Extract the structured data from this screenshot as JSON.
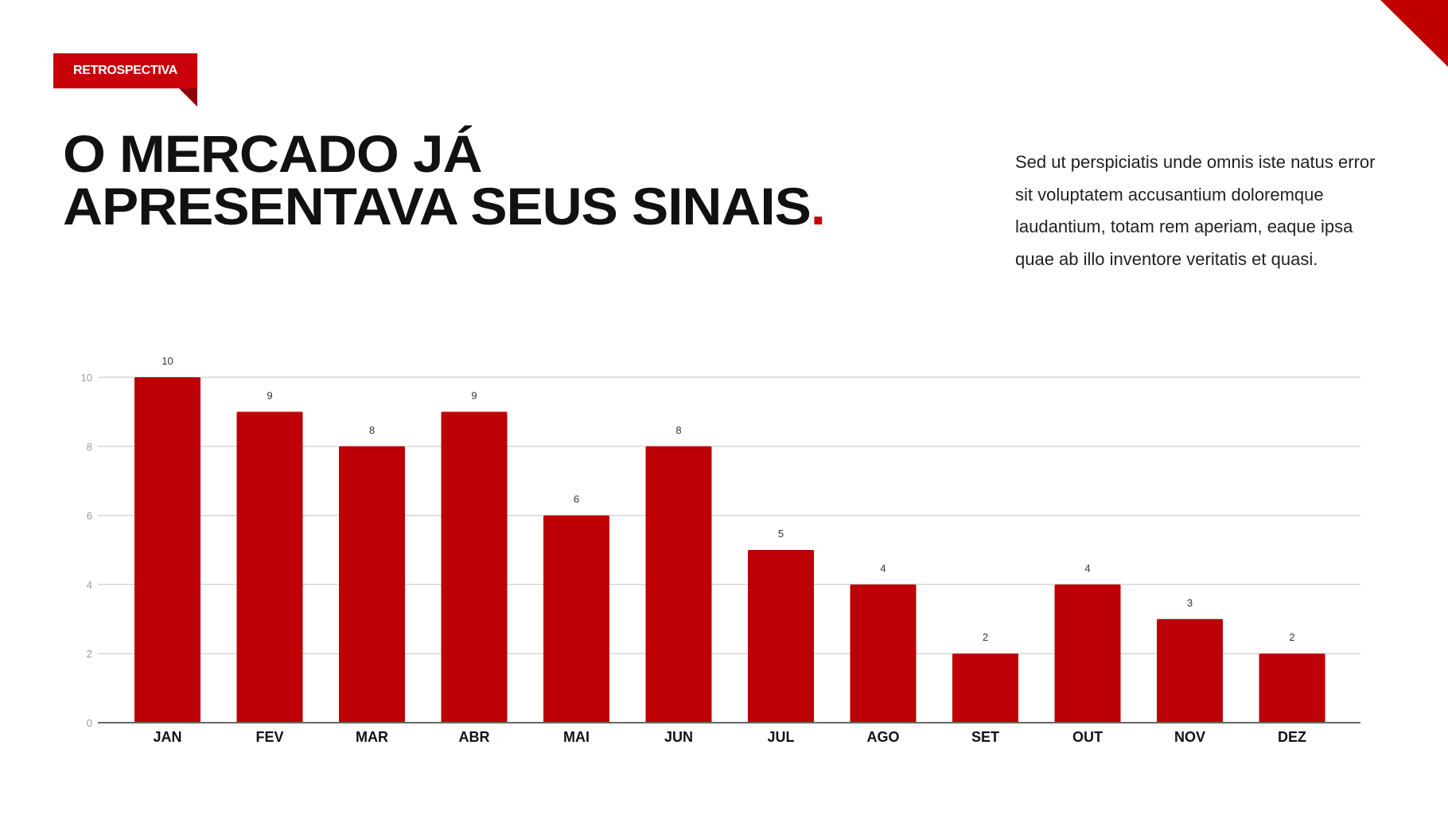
{
  "badge": {
    "label": "RETROSPECTIVA"
  },
  "title": {
    "line1": "O MERCADO JÁ",
    "line2": "APRESENTAVA SEUS SINAIS",
    "dot": "."
  },
  "paragraph": "Sed ut perspiciatis unde omnis iste natus error sit voluptatem accusantium doloremque laudantium, totam rem aperiam, eaque ipsa quae ab illo inventore veritatis et quasi.",
  "colors": {
    "accent": "#c8000a",
    "bar": "#bd0006"
  },
  "chart_data": {
    "type": "bar",
    "title": "",
    "xlabel": "",
    "ylabel": "",
    "categories": [
      "JAN",
      "FEV",
      "MAR",
      "ABR",
      "MAI",
      "JUN",
      "JUL",
      "AGO",
      "SET",
      "OUT",
      "NOV",
      "DEZ"
    ],
    "values": [
      10,
      9,
      8,
      9,
      6,
      8,
      5,
      4,
      2,
      4,
      3,
      2
    ],
    "ylim": [
      0,
      10
    ],
    "yticks": [
      0,
      2,
      4,
      6,
      8,
      10
    ],
    "grid": true,
    "data_labels": true,
    "legend": "none"
  }
}
